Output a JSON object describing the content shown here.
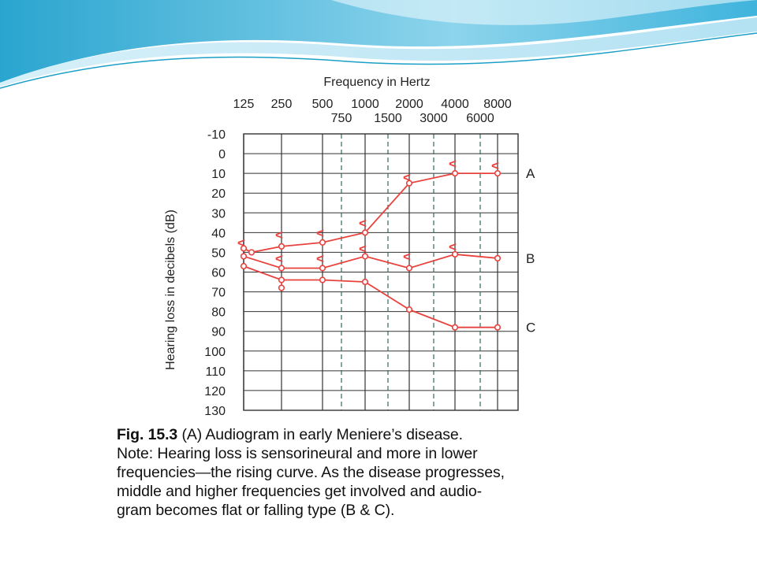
{
  "slide": {
    "background": "#ffffff",
    "banner_colors": [
      "#1b9fc7",
      "#6cc9e6",
      "#bfe7f4"
    ]
  },
  "chart_data": {
    "type": "line",
    "title": "Frequency in  Hertz",
    "ylabel": "Hearing loss in decibels (dB)",
    "x_top_ticks": [
      "125",
      "250",
      "500",
      "1000",
      "2000",
      "4000",
      "8000"
    ],
    "x_bottom_ticks": [
      "750",
      "1500",
      "3000",
      "6000"
    ],
    "y_ticks": [
      "-10",
      "0",
      "10",
      "20",
      "30",
      "40",
      "50",
      "60",
      "70",
      "80",
      "90",
      "100",
      "110",
      "120",
      "130"
    ],
    "ylim": [
      -10,
      130
    ],
    "y_inverted": true,
    "grid": true,
    "line_color": "#e8423e",
    "series": [
      {
        "name": "A",
        "x": [
          125,
          125,
          250,
          500,
          1000,
          2000,
          4000,
          8000
        ],
        "y": [
          48,
          50,
          47,
          45,
          40,
          15,
          10,
          10
        ]
      },
      {
        "name": "B",
        "x": [
          125,
          250,
          500,
          1000,
          2000,
          4000,
          8000
        ],
        "y": [
          52,
          58,
          58,
          52,
          58,
          51,
          53
        ]
      },
      {
        "name": "C",
        "x": [
          125,
          250,
          500,
          1000,
          2000,
          4000,
          8000
        ],
        "y": [
          57,
          64,
          64,
          65,
          79,
          88,
          88
        ]
      }
    ],
    "unmarked_points": [
      {
        "x": 250,
        "y": 68
      }
    ],
    "masked_markers": [
      {
        "x": 125,
        "y": 45
      },
      {
        "x": 250,
        "y": 41
      },
      {
        "x": 500,
        "y": 40
      },
      {
        "x": 1000,
        "y": 35
      },
      {
        "x": 2000,
        "y": 12
      },
      {
        "x": 4000,
        "y": 5
      },
      {
        "x": 8000,
        "y": 6
      },
      {
        "x": 250,
        "y": 53
      },
      {
        "x": 500,
        "y": 53
      },
      {
        "x": 1000,
        "y": 48
      },
      {
        "x": 2000,
        "y": 52
      },
      {
        "x": 4000,
        "y": 47
      }
    ],
    "masked_symbol": "<"
  },
  "caption": {
    "label": "Fig. 15.3",
    "lines": [
      " (A) Audiogram in early Meniere’s disease.",
      "Note: Hearing loss is sensorineural and more in lower",
      "frequencies—the rising curve. As the disease progresses,",
      "middle and higher frequencies get involved and audio-",
      "gram becomes flat or falling type (B & C)."
    ]
  }
}
